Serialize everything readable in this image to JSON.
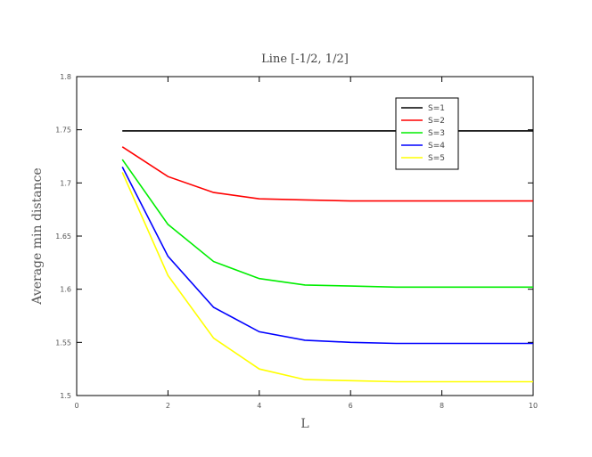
{
  "chart_data": {
    "type": "line",
    "title": "Line [-1/2, 1/2]",
    "xlabel": "L",
    "ylabel": "Average min distance",
    "xlim": [
      0,
      10
    ],
    "ylim": [
      1.5,
      1.8
    ],
    "xticks": [
      0,
      2,
      4,
      6,
      8,
      10
    ],
    "yticks": [
      1.5,
      1.55,
      1.6,
      1.65,
      1.7,
      1.75,
      1.8
    ],
    "xtick_labels": [
      "0",
      "2",
      "4",
      "6",
      "8",
      "10"
    ],
    "ytick_labels": [
      "1.5",
      "1.55",
      "1.6",
      "1.65",
      "1.7",
      "1.75",
      "1.8"
    ],
    "grid": false,
    "legend_position": "top-right",
    "x": [
      1,
      2,
      3,
      4,
      5,
      6,
      7,
      8,
      9,
      10
    ],
    "series": [
      {
        "name": "S=1",
        "color": "#000000",
        "values": [
          1.749,
          1.749,
          1.749,
          1.749,
          1.749,
          1.749,
          1.749,
          1.749,
          1.749,
          1.749
        ]
      },
      {
        "name": "S=2",
        "color": "#ff0000",
        "values": [
          1.734,
          1.706,
          1.691,
          1.685,
          1.684,
          1.683,
          1.683,
          1.683,
          1.683,
          1.683
        ]
      },
      {
        "name": "S=3",
        "color": "#00ee00",
        "values": [
          1.722,
          1.661,
          1.626,
          1.61,
          1.604,
          1.603,
          1.602,
          1.602,
          1.602,
          1.602
        ]
      },
      {
        "name": "S=4",
        "color": "#0000ff",
        "values": [
          1.715,
          1.631,
          1.583,
          1.56,
          1.552,
          1.55,
          1.549,
          1.549,
          1.549,
          1.549
        ]
      },
      {
        "name": "S=5",
        "color": "#ffff00",
        "values": [
          1.71,
          1.613,
          1.554,
          1.525,
          1.515,
          1.514,
          1.513,
          1.513,
          1.513,
          1.513
        ]
      }
    ]
  }
}
